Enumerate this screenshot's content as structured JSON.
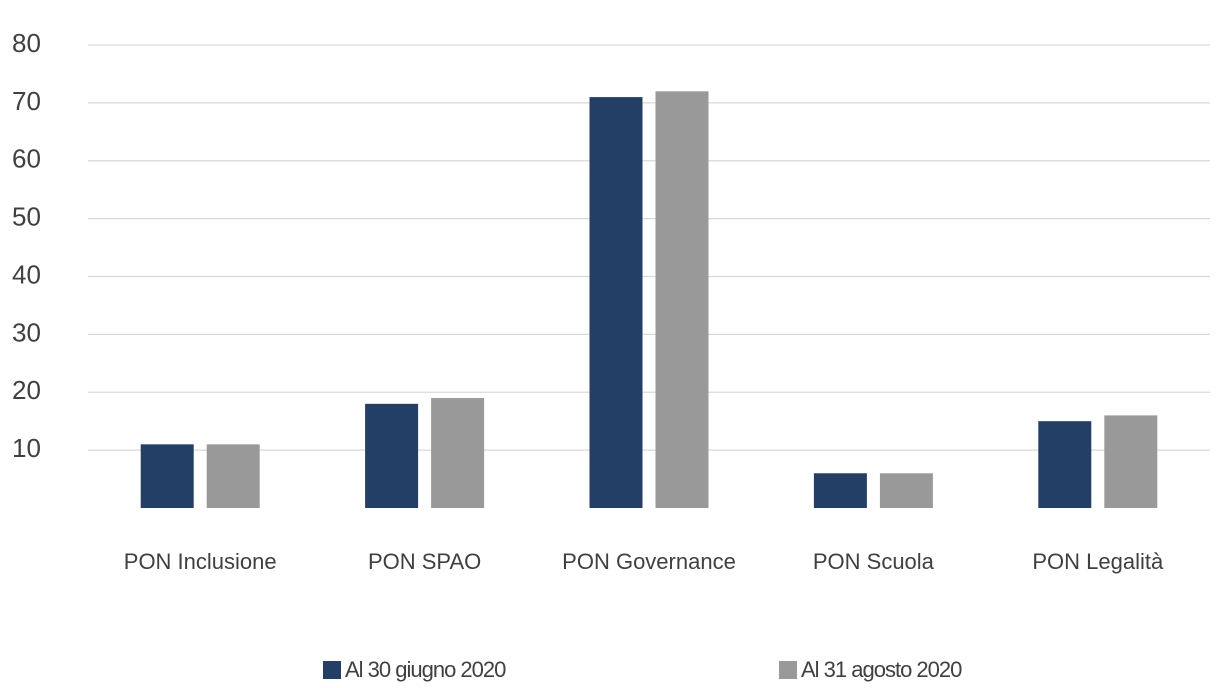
{
  "chart_data": {
    "type": "bar",
    "categories": [
      "PON Inclusione",
      "PON SPAO",
      "PON Governance",
      "PON Scuola",
      "PON Legalità"
    ],
    "series": [
      {
        "name": "Al 30 giugno 2020",
        "color": "#243f66",
        "values": [
          11,
          18,
          71,
          6,
          15
        ]
      },
      {
        "name": "Al 31 agosto 2020",
        "color": "#999999",
        "values": [
          11,
          19,
          72,
          6,
          16
        ]
      }
    ],
    "ylim": [
      0,
      80
    ],
    "yticks": [
      10,
      20,
      30,
      40,
      50,
      60,
      70,
      80
    ],
    "grid": true,
    "legend": "bottom"
  }
}
